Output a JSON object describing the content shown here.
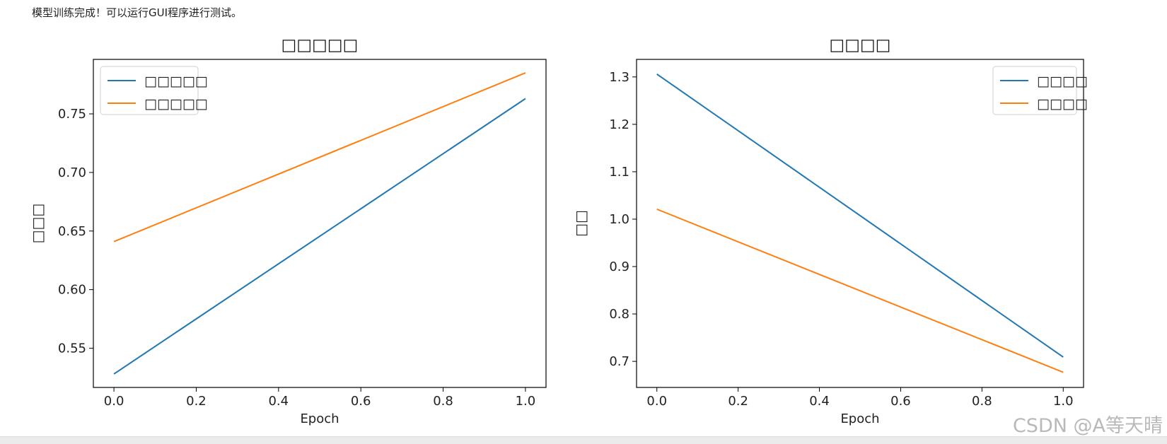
{
  "output": {
    "status_text": "模型训练完成！可以运行GUI程序进行测试。"
  },
  "watermark": "CSDN @A等天晴",
  "chart_data": [
    {
      "type": "line",
      "title": "□□□□□",
      "xlabel": "Epoch",
      "ylabel": "□□□",
      "x": [
        0,
        1
      ],
      "xlim": [
        -0.05,
        1.05
      ],
      "ylim": [
        0.5165,
        0.7965
      ],
      "xticks": [
        "0.0",
        "0.2",
        "0.4",
        "0.6",
        "0.8",
        "1.0"
      ],
      "yticks": [
        "0.55",
        "0.60",
        "0.65",
        "0.70",
        "0.75"
      ],
      "grid": false,
      "legend_position": "upper left",
      "series": [
        {
          "name": "□□□□□",
          "color": "#1f77b4",
          "values": [
            0.528,
            0.763
          ]
        },
        {
          "name": "□□□□□",
          "color": "#ff7f0e",
          "values": [
            0.641,
            0.785
          ]
        }
      ]
    },
    {
      "type": "line",
      "title": "□□□□",
      "xlabel": "Epoch",
      "ylabel": "□□",
      "x": [
        0,
        1
      ],
      "xlim": [
        -0.05,
        1.05
      ],
      "ylim": [
        0.645,
        1.337
      ],
      "xticks": [
        "0.0",
        "0.2",
        "0.4",
        "0.6",
        "0.8",
        "1.0"
      ],
      "yticks": [
        "0.7",
        "0.8",
        "0.9",
        "1.0",
        "1.1",
        "1.2",
        "1.3"
      ],
      "grid": false,
      "legend_position": "upper right",
      "series": [
        {
          "name": "□□□□",
          "color": "#1f77b4",
          "values": [
            1.306,
            0.709
          ]
        },
        {
          "name": "□□□□",
          "color": "#ff7f0e",
          "values": [
            1.021,
            0.677
          ]
        }
      ]
    }
  ]
}
